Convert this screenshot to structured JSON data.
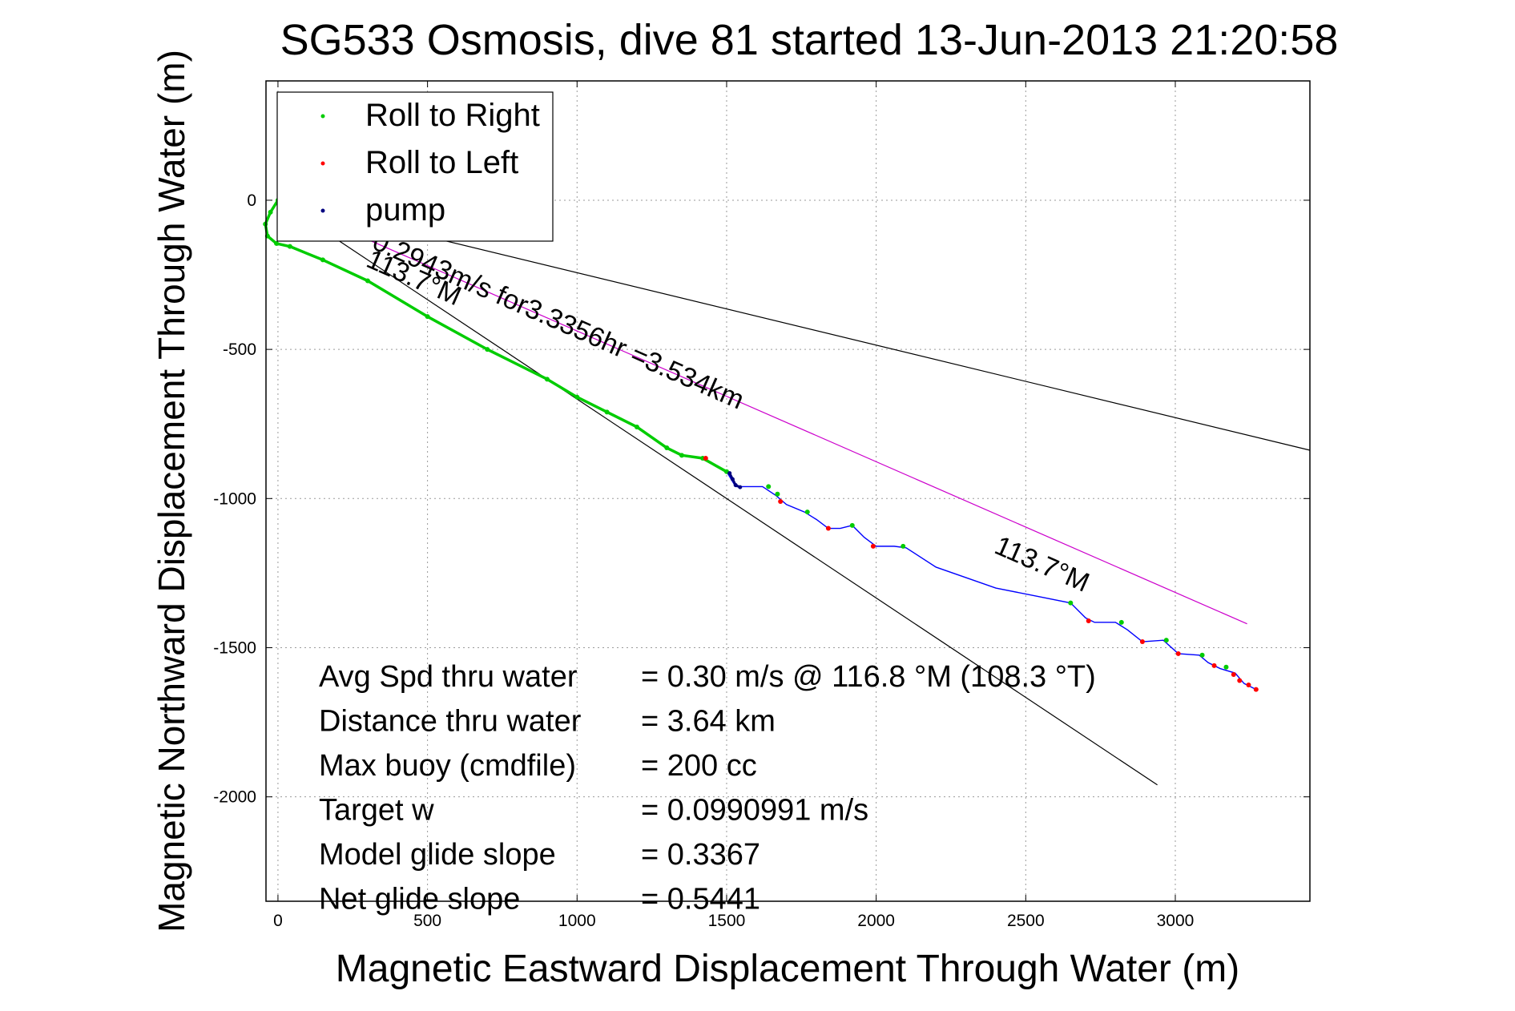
{
  "chart_data": {
    "type": "line",
    "title": "SG533 Osmosis, dive 81 started 13-Jun-2013 21:20:58",
    "xlabel": "Magnetic Eastward Displacement Through Water (m)",
    "ylabel": "Magnetic Northward Displacement Through Water (m)",
    "xlim": [
      -40,
      3450
    ],
    "ylim": [
      -2350,
      400
    ],
    "xticks": [
      0,
      500,
      1000,
      1500,
      2000,
      2500,
      3000
    ],
    "yticks": [
      0,
      -500,
      -1000,
      -1500,
      -2000
    ],
    "grid": true,
    "legend": {
      "placement": "top-left",
      "entries": [
        {
          "label": "Roll to Right",
          "color": "#00cc00"
        },
        {
          "label": "Roll to Left",
          "color": "#ff0000"
        },
        {
          "label": "pump",
          "color": "#000080"
        }
      ]
    },
    "series": [
      {
        "name": "track",
        "color": "#0000ff",
        "points": [
          [
            0,
            0
          ],
          [
            -25,
            -40
          ],
          [
            -42,
            -80
          ],
          [
            -35,
            -120
          ],
          [
            -5,
            -145
          ],
          [
            40,
            -155
          ],
          [
            150,
            -200
          ],
          [
            300,
            -270
          ],
          [
            500,
            -390
          ],
          [
            700,
            -500
          ],
          [
            900,
            -600
          ],
          [
            1000,
            -660
          ],
          [
            1100,
            -710
          ],
          [
            1200,
            -760
          ],
          [
            1300,
            -830
          ],
          [
            1350,
            -855
          ],
          [
            1420,
            -865
          ],
          [
            1500,
            -910
          ],
          [
            1530,
            -960
          ],
          [
            1560,
            -960
          ],
          [
            1620,
            -960
          ],
          [
            1665,
            -990
          ],
          [
            1700,
            -1020
          ],
          [
            1760,
            -1045
          ],
          [
            1800,
            -1070
          ],
          [
            1840,
            -1100
          ],
          [
            1880,
            -1100
          ],
          [
            1920,
            -1090
          ],
          [
            1960,
            -1130
          ],
          [
            2000,
            -1160
          ],
          [
            2060,
            -1160
          ],
          [
            2100,
            -1165
          ],
          [
            2200,
            -1230
          ],
          [
            2400,
            -1300
          ],
          [
            2550,
            -1330
          ],
          [
            2650,
            -1350
          ],
          [
            2700,
            -1400
          ],
          [
            2730,
            -1415
          ],
          [
            2800,
            -1415
          ],
          [
            2840,
            -1440
          ],
          [
            2890,
            -1480
          ],
          [
            2960,
            -1475
          ],
          [
            3010,
            -1520
          ],
          [
            3080,
            -1525
          ],
          [
            3110,
            -1550
          ],
          [
            3150,
            -1570
          ],
          [
            3200,
            -1585
          ],
          [
            3230,
            -1620
          ],
          [
            3270,
            -1640
          ]
        ]
      },
      {
        "name": "Roll to Right",
        "color": "#00cc00",
        "points": [
          [
            0,
            0
          ],
          [
            -25,
            -40
          ],
          [
            -42,
            -80
          ],
          [
            -35,
            -120
          ],
          [
            -5,
            -145
          ],
          [
            40,
            -155
          ],
          [
            150,
            -200
          ],
          [
            300,
            -270
          ],
          [
            500,
            -390
          ],
          [
            700,
            -500
          ],
          [
            900,
            -600
          ],
          [
            1000,
            -660
          ],
          [
            1100,
            -710
          ],
          [
            1200,
            -760
          ],
          [
            1300,
            -830
          ],
          [
            1350,
            -855
          ],
          [
            1420,
            -865
          ],
          [
            1500,
            -910
          ],
          [
            1640,
            -960
          ],
          [
            1670,
            -985
          ],
          [
            1770,
            -1045
          ],
          [
            1920,
            -1090
          ],
          [
            2090,
            -1160
          ],
          [
            2650,
            -1350
          ],
          [
            2820,
            -1415
          ],
          [
            2970,
            -1475
          ],
          [
            3090,
            -1525
          ],
          [
            3170,
            -1565
          ]
        ]
      },
      {
        "name": "Roll to Left",
        "color": "#ff0000",
        "points": [
          [
            1430,
            -865
          ],
          [
            1680,
            -1010
          ],
          [
            1840,
            -1100
          ],
          [
            1990,
            -1160
          ],
          [
            2710,
            -1410
          ],
          [
            2890,
            -1480
          ],
          [
            3010,
            -1520
          ],
          [
            3130,
            -1560
          ],
          [
            3195,
            -1590
          ],
          [
            3215,
            -1610
          ],
          [
            3245,
            -1625
          ],
          [
            3270,
            -1640
          ]
        ]
      },
      {
        "name": "pump",
        "color": "#000080",
        "points": [
          [
            1510,
            -915
          ],
          [
            1520,
            -935
          ],
          [
            1530,
            -955
          ],
          [
            1545,
            -962
          ]
        ]
      }
    ],
    "reference_lines": [
      {
        "color": "#000000",
        "x": [
          0,
          2940
        ],
        "y": [
          0,
          -1960
        ]
      },
      {
        "color": "#000000",
        "x": [
          0,
          3450
        ],
        "y": [
          0,
          -838
        ]
      },
      {
        "color": "#cc00cc",
        "x": [
          0,
          3240
        ],
        "y": [
          0,
          -1420
        ]
      }
    ],
    "annotations": [
      {
        "text": "0.2943m/s for3.3356hr =3.534km",
        "x": 310,
        "y": -160,
        "angle": 23.7
      },
      {
        "text": "113.7°M",
        "x": 290,
        "y": -220,
        "angle": 23.7
      },
      {
        "text": "113.7°M",
        "x": 2390,
        "y": -1180,
        "angle": 23.7
      }
    ],
    "stats": [
      {
        "label": "Avg Spd thru water",
        "value": "=  0.30 m/s @ 116.8 °M (108.3 °T)"
      },
      {
        "label": "Distance thru water",
        "value": "=  3.64 km"
      },
      {
        "label": "Max buoy (cmdfile)",
        "value": "= 200 cc"
      },
      {
        "label": "Target w",
        "value": "= 0.0990991 m/s"
      },
      {
        "label": "Model glide slope",
        "value": "= 0.3367"
      },
      {
        "label": "Net glide slope",
        "value": "= 0.5441"
      }
    ]
  }
}
